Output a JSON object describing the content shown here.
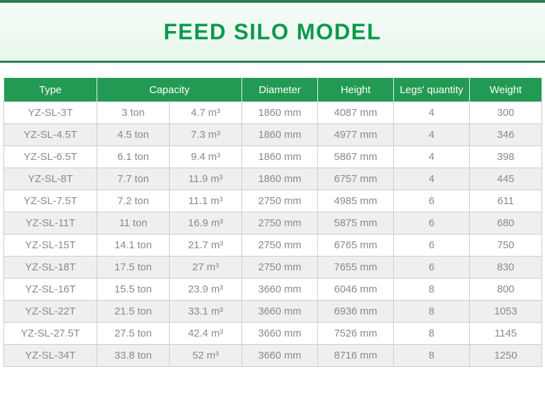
{
  "banner": {
    "title": "FEED SILO MODEL"
  },
  "table": {
    "headers": {
      "type": "Type",
      "capacity": "Capacity",
      "diameter": "Diameter",
      "height": "Height",
      "legs": "Legs' quantity",
      "weight": "Weight"
    },
    "rows": [
      {
        "type": "YZ-SL-3T",
        "ton": "3 ton",
        "volume": "4.7 m³",
        "diameter": "1860 mm",
        "height": "4087 mm",
        "legs": "4",
        "weight": "300"
      },
      {
        "type": "YZ-SL-4.5T",
        "ton": "4.5 ton",
        "volume": "7.3 m³",
        "diameter": "1860 mm",
        "height": "4977 mm",
        "legs": "4",
        "weight": "346"
      },
      {
        "type": "YZ-SL-6.5T",
        "ton": "6.1 ton",
        "volume": "9.4 m³",
        "diameter": "1860 mm",
        "height": "5867 mm",
        "legs": "4",
        "weight": "398"
      },
      {
        "type": "YZ-SL-8T",
        "ton": "7.7 ton",
        "volume": "11.9 m³",
        "diameter": "1860 mm",
        "height": "6757 mm",
        "legs": "4",
        "weight": "445"
      },
      {
        "type": "YZ-SL-7.5T",
        "ton": "7.2 ton",
        "volume": "11.1 m³",
        "diameter": "2750 mm",
        "height": "4985 mm",
        "legs": "6",
        "weight": "611"
      },
      {
        "type": "YZ-SL-11T",
        "ton": "11 ton",
        "volume": "16.9 m³",
        "diameter": "2750 mm",
        "height": "5875 mm",
        "legs": "6",
        "weight": "680"
      },
      {
        "type": "YZ-SL-15T",
        "ton": "14.1 ton",
        "volume": "21.7 m³",
        "diameter": "2750 mm",
        "height": "6765 mm",
        "legs": "6",
        "weight": "750"
      },
      {
        "type": "YZ-SL-18T",
        "ton": "17.5 ton",
        "volume": "27 m³",
        "diameter": "2750 mm",
        "height": "7655 mm",
        "legs": "6",
        "weight": "830"
      },
      {
        "type": "YZ-SL-16T",
        "ton": "15.5 ton",
        "volume": "23.9 m³",
        "diameter": "3660 mm",
        "height": "6046 mm",
        "legs": "8",
        "weight": "800"
      },
      {
        "type": "YZ-SL-22T",
        "ton": "21.5 ton",
        "volume": "33.1 m³",
        "diameter": "3660 mm",
        "height": "6936 mm",
        "legs": "8",
        "weight": "1053"
      },
      {
        "type": "YZ-SL-27.5T",
        "ton": "27.5 ton",
        "volume": "42.4 m³",
        "diameter": "3660 mm",
        "height": "7526 mm",
        "legs": "8",
        "weight": "1145"
      },
      {
        "type": "YZ-SL-34T",
        "ton": "33.8 ton",
        "volume": "52 m³",
        "diameter": "3660 mm",
        "height": "8716 mm",
        "legs": "8",
        "weight": "1250"
      }
    ]
  },
  "colors": {
    "accent_green": "#0c9a4b",
    "header_green": "#239a54",
    "banner_border_green": "#2b7c4b",
    "banner_bg_light_green": "#e7f7ec",
    "row_alt_gray": "#efefef",
    "cell_text_gray": "#898989",
    "cell_border_gray": "#cccccc"
  }
}
